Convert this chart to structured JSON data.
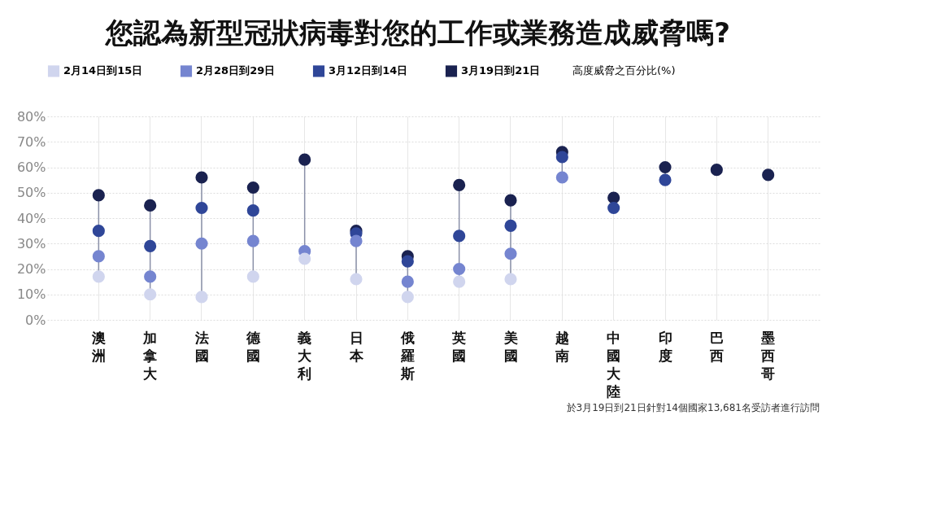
{
  "chart_data": {
    "type": "scatter",
    "title": "您認為新型冠狀病毒對您的工作或業務造成威脅嗎?",
    "legend_title": "高度威脅之百分比(%)",
    "categories": [
      "澳洲",
      "加拿大",
      "法國",
      "德國",
      "義大利",
      "日本",
      "俄羅斯",
      "英國",
      "美國",
      "越南",
      "中國大陸",
      "印度",
      "巴西",
      "墨西哥"
    ],
    "series": [
      {
        "name": "2月14日到15日",
        "color": "#d0d5ee",
        "values": [
          17,
          10,
          9,
          17,
          24,
          16,
          9,
          15,
          16,
          null,
          null,
          null,
          null,
          null
        ]
      },
      {
        "name": "2月28日到29日",
        "color": "#7585d0",
        "values": [
          25,
          17,
          30,
          31,
          27,
          31,
          15,
          20,
          26,
          56,
          null,
          null,
          null,
          null
        ]
      },
      {
        "name": "3月12日到14日",
        "color": "#2f4698",
        "values": [
          35,
          29,
          44,
          43,
          null,
          34,
          23,
          33,
          37,
          64,
          44,
          55,
          null,
          null
        ]
      },
      {
        "name": "3月19日到21日",
        "color": "#1a2250",
        "values": [
          49,
          45,
          56,
          52,
          63,
          35,
          25,
          53,
          47,
          66,
          48,
          60,
          59,
          57
        ]
      }
    ],
    "ylim": [
      0,
      80
    ],
    "yticks": [
      {
        "value": 0,
        "label": "0%"
      },
      {
        "value": 10,
        "label": "10%"
      },
      {
        "value": 20,
        "label": "20%"
      },
      {
        "value": 30,
        "label": "30%"
      },
      {
        "value": 40,
        "label": "40%"
      },
      {
        "value": 50,
        "label": "50%"
      },
      {
        "value": 60,
        "label": "60%"
      },
      {
        "value": 70,
        "label": "70%"
      },
      {
        "value": 80,
        "label": "80%"
      }
    ],
    "grid": true,
    "legend": "top left",
    "marker": "circle",
    "annotations": [
      "於3月19日到21日針對14個國家13,681名受訪者進行訪問"
    ]
  }
}
